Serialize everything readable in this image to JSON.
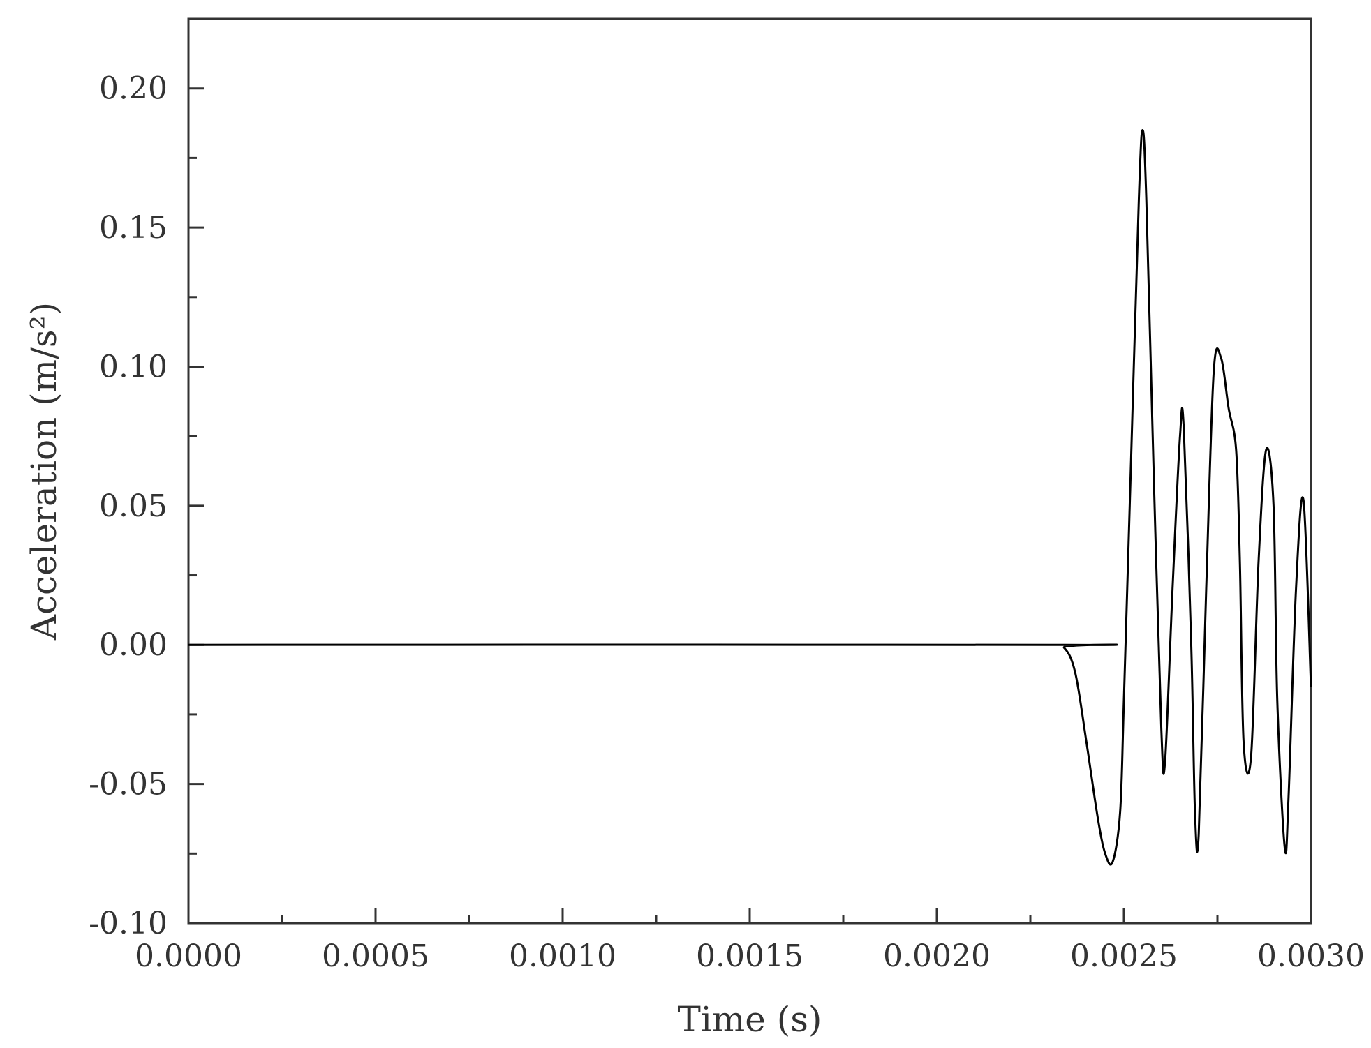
{
  "chart_data": {
    "type": "line",
    "title": "",
    "xlabel": "Time (s)",
    "ylabel": "Acceleration (m/s²)",
    "xlim": [
      0,
      0.003
    ],
    "ylim": [
      -0.1,
      0.225
    ],
    "grid": false,
    "legend": "none",
    "x_ticks": [
      0,
      0.0005,
      0.001,
      0.0015,
      0.002,
      0.0025,
      0.003
    ],
    "x_tick_labels": [
      "0.0000",
      "0.0005",
      "0.0010",
      "0.0015",
      "0.0020",
      "0.0025",
      "0.0030"
    ],
    "y_ticks": [
      -0.1,
      -0.05,
      0,
      0.05,
      0.1,
      0.15,
      0.2
    ],
    "y_tick_labels": [
      "-0.10",
      "-0.05",
      "0.00",
      "0.05",
      "0.10",
      "0.15",
      "0.20"
    ],
    "line_color": "#000000",
    "series": [
      {
        "x": [
          0,
          0.0023,
          0.00234,
          0.00237,
          0.0024,
          0.00243,
          0.00245,
          0.00247,
          0.00249,
          0.0025,
          0.00252,
          0.00254,
          0.00255,
          0.00256,
          0.00258,
          0.0026,
          0.00261,
          0.00263,
          0.00265,
          0.00266,
          0.00268,
          0.00269,
          0.0027,
          0.00272,
          0.00274,
          0.00276,
          0.00278,
          0.0028,
          0.00281,
          0.00282,
          0.00284,
          0.00286,
          0.00288,
          0.0029,
          0.00291,
          0.00293,
          0.00294,
          0.00296,
          0.00298,
          0.003
        ],
        "y": [
          0,
          0,
          -0.001,
          -0.01,
          -0.035,
          -0.062,
          -0.075,
          -0.078,
          -0.06,
          -0.02,
          0.07,
          0.16,
          0.185,
          0.16,
          0.06,
          -0.03,
          -0.042,
          0.02,
          0.075,
          0.078,
          0.0,
          -0.06,
          -0.068,
          0.02,
          0.098,
          0.103,
          0.085,
          0.07,
          0.03,
          -0.035,
          -0.04,
          0.03,
          0.07,
          0.05,
          -0.02,
          -0.073,
          -0.055,
          0.02,
          0.052,
          -0.015
        ]
      }
    ]
  }
}
